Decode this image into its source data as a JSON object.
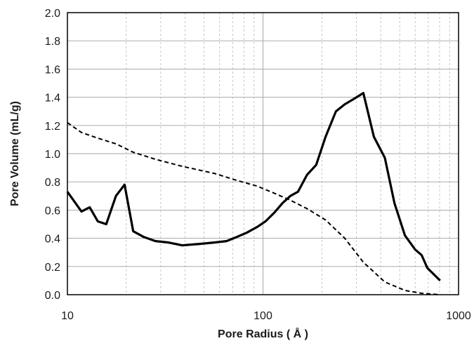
{
  "chart_data": {
    "type": "line",
    "title": "",
    "xlabel": "Pore Radius ( Å )",
    "ylabel": "Pore Volume  (mL/g)",
    "x_scale": "log",
    "xlim": [
      10,
      1000
    ],
    "ylim": [
      0,
      2.0
    ],
    "x_ticks": [
      "10",
      "100",
      "1000"
    ],
    "y_ticks": [
      "0.0",
      "0.2",
      "0.4",
      "0.6",
      "0.8",
      "1.0",
      "1.2",
      "1.4",
      "1.6",
      "1.8",
      "2.0"
    ],
    "grid": "on",
    "legend": "none",
    "series": [
      {
        "style": "solid",
        "color": "#000000",
        "x": [
          10,
          11.8,
          13,
          14.3,
          15.8,
          17.7,
          19.6,
          21.7,
          24.5,
          28.2,
          32.9,
          38.7,
          47.5,
          56.4,
          65.1,
          73.7,
          82.7,
          93.3,
          103,
          114,
          126,
          138,
          151,
          168,
          187,
          209,
          236,
          262,
          293,
          326,
          369,
          420,
          470,
          532,
          600,
          648,
          692,
          805
        ],
        "y": [
          0.73,
          0.59,
          0.62,
          0.52,
          0.5,
          0.7,
          0.78,
          0.45,
          0.41,
          0.38,
          0.37,
          0.35,
          0.36,
          0.37,
          0.38,
          0.41,
          0.44,
          0.48,
          0.52,
          0.58,
          0.65,
          0.7,
          0.73,
          0.85,
          0.92,
          1.12,
          1.3,
          1.35,
          1.39,
          1.43,
          1.12,
          0.97,
          0.65,
          0.42,
          0.32,
          0.28,
          0.19,
          0.1
        ]
      },
      {
        "style": "dashed",
        "color": "#000000",
        "x": [
          10,
          11.8,
          14.3,
          17.7,
          21.7,
          28.2,
          38.7,
          56.4,
          73.7,
          93.3,
          114,
          138,
          168,
          209,
          262,
          326,
          420,
          532,
          648,
          805
        ],
        "y": [
          1.22,
          1.15,
          1.11,
          1.07,
          1.01,
          0.96,
          0.91,
          0.86,
          0.81,
          0.77,
          0.72,
          0.67,
          0.61,
          0.53,
          0.4,
          0.23,
          0.09,
          0.03,
          0.01,
          0.0
        ]
      }
    ]
  }
}
